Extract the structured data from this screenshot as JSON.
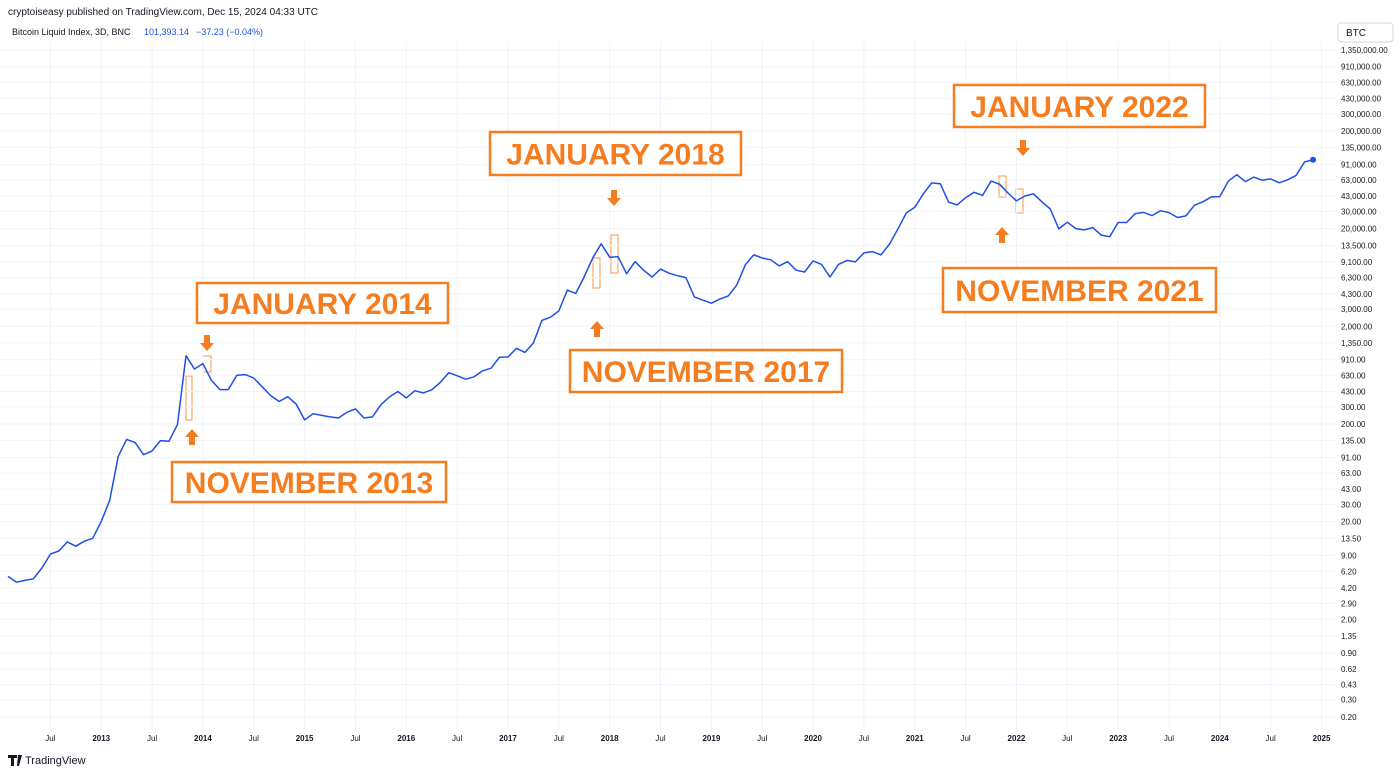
{
  "header": {
    "publisher": "cryptoiseasy published on TradingView.com, Dec 15, 2024 04:33 UTC",
    "price": "101,393.14",
    "change": "−37.23 (−0.04%)",
    "symbol": "BTC",
    "footer": "TradingView"
  },
  "chart_data": {
    "type": "line",
    "title": "Bitcoin Liquid Index, 3D, BNC",
    "color": "#1e4fe6",
    "log_scale": true,
    "grid": true,
    "x": [
      "2012-02",
      "2012-03",
      "2012-04",
      "2012-05",
      "2012-06",
      "2012-07",
      "2012-08",
      "2012-09",
      "2012-10",
      "2012-11",
      "2012-12",
      "2013-01",
      "2013-02",
      "2013-03",
      "2013-04",
      "2013-05",
      "2013-06",
      "2013-07",
      "2013-08",
      "2013-09",
      "2013-10",
      "2013-11",
      "2013-12",
      "2014-01",
      "2014-02",
      "2014-03",
      "2014-04",
      "2014-05",
      "2014-06",
      "2014-07",
      "2014-08",
      "2014-09",
      "2014-10",
      "2014-11",
      "2014-12",
      "2015-01",
      "2015-02",
      "2015-03",
      "2015-04",
      "2015-05",
      "2015-06",
      "2015-07",
      "2015-08",
      "2015-09",
      "2015-10",
      "2015-11",
      "2015-12",
      "2016-01",
      "2016-02",
      "2016-03",
      "2016-04",
      "2016-05",
      "2016-06",
      "2016-07",
      "2016-08",
      "2016-09",
      "2016-10",
      "2016-11",
      "2016-12",
      "2017-01",
      "2017-02",
      "2017-03",
      "2017-04",
      "2017-05",
      "2017-06",
      "2017-07",
      "2017-08",
      "2017-09",
      "2017-10",
      "2017-11",
      "2017-12",
      "2018-01",
      "2018-02",
      "2018-03",
      "2018-04",
      "2018-05",
      "2018-06",
      "2018-07",
      "2018-08",
      "2018-09",
      "2018-10",
      "2018-11",
      "2018-12",
      "2019-01",
      "2019-02",
      "2019-03",
      "2019-04",
      "2019-05",
      "2019-06",
      "2019-07",
      "2019-08",
      "2019-09",
      "2019-10",
      "2019-11",
      "2019-12",
      "2020-01",
      "2020-02",
      "2020-03",
      "2020-04",
      "2020-05",
      "2020-06",
      "2020-07",
      "2020-08",
      "2020-09",
      "2020-10",
      "2020-11",
      "2020-12",
      "2021-01",
      "2021-02",
      "2021-03",
      "2021-04",
      "2021-05",
      "2021-06",
      "2021-07",
      "2021-08",
      "2021-09",
      "2021-10",
      "2021-11",
      "2021-12",
      "2022-01",
      "2022-02",
      "2022-03",
      "2022-04",
      "2022-05",
      "2022-06",
      "2022-07",
      "2022-08",
      "2022-09",
      "2022-10",
      "2022-11",
      "2022-12",
      "2023-01",
      "2023-02",
      "2023-03",
      "2023-04",
      "2023-05",
      "2023-06",
      "2023-07",
      "2023-08",
      "2023-09",
      "2023-10",
      "2023-11",
      "2023-12",
      "2024-01",
      "2024-02",
      "2024-03",
      "2024-04",
      "2024-05",
      "2024-06",
      "2024-07",
      "2024-08",
      "2024-09",
      "2024-10",
      "2024-11",
      "2024-12"
    ],
    "values": [
      5.5,
      4.8,
      5.0,
      5.2,
      6.7,
      9.3,
      10,
      12.4,
      11.2,
      12.6,
      13.5,
      20,
      33,
      93,
      139,
      129,
      97,
      106,
      135,
      133,
      198,
      1000,
      730,
      830,
      560,
      450,
      450,
      630,
      640,
      590,
      480,
      390,
      340,
      380,
      320,
      220,
      255,
      245,
      236,
      230,
      263,
      285,
      230,
      236,
      314,
      378,
      430,
      370,
      437,
      416,
      448,
      531,
      670,
      624,
      575,
      608,
      700,
      745,
      963,
      970,
      1190,
      1080,
      1350,
      2300,
      2480,
      2870,
      4700,
      4340,
      6450,
      10000,
      14000,
      10200,
      10300,
      6900,
      9200,
      7500,
      6400,
      7700,
      7000,
      6600,
      6300,
      4000,
      3700,
      3450,
      3800,
      4100,
      5300,
      8500,
      10800,
      10000,
      9600,
      8300,
      9200,
      7500,
      7200,
      9350,
      8600,
      6400,
      8600,
      9450,
      9140,
      11300,
      11650,
      10780,
      13800,
      19700,
      29000,
      33100,
      45200,
      58800,
      57700,
      37300,
      35000,
      41500,
      47100,
      43800,
      61300,
      57000,
      46300,
      38500,
      43200,
      45500,
      37700,
      31800,
      19900,
      23300,
      20000,
      19400,
      20500,
      17200,
      16500,
      23100,
      23100,
      28500,
      29300,
      27200,
      30500,
      29200,
      26000,
      27000,
      34700,
      37700,
      42300,
      42600,
      61200,
      71300,
      60700,
      67500,
      62700,
      64600,
      59000,
      63300,
      70200,
      96400,
      101393
    ],
    "xlim": [
      "2012-02",
      "2025-02"
    ],
    "xticks": [
      {
        "value": "2012-07",
        "label": "Jul"
      },
      {
        "value": "2013-01",
        "label": "2013"
      },
      {
        "value": "2013-07",
        "label": "Jul"
      },
      {
        "value": "2014-01",
        "label": "2014"
      },
      {
        "value": "2014-07",
        "label": "Jul"
      },
      {
        "value": "2015-01",
        "label": "2015"
      },
      {
        "value": "2015-07",
        "label": "Jul"
      },
      {
        "value": "2016-01",
        "label": "2016"
      },
      {
        "value": "2016-07",
        "label": "Jul"
      },
      {
        "value": "2017-01",
        "label": "2017"
      },
      {
        "value": "2017-07",
        "label": "Jul"
      },
      {
        "value": "2018-01",
        "label": "2018"
      },
      {
        "value": "2018-07",
        "label": "Jul"
      },
      {
        "value": "2019-01",
        "label": "2019"
      },
      {
        "value": "2019-07",
        "label": "Jul"
      },
      {
        "value": "2020-01",
        "label": "2020"
      },
      {
        "value": "2020-07",
        "label": "Jul"
      },
      {
        "value": "2021-01",
        "label": "2021"
      },
      {
        "value": "2021-07",
        "label": "Jul"
      },
      {
        "value": "2022-01",
        "label": "2022"
      },
      {
        "value": "2022-07",
        "label": "Jul"
      },
      {
        "value": "2023-01",
        "label": "2023"
      },
      {
        "value": "2023-07",
        "label": "Jul"
      },
      {
        "value": "2024-01",
        "label": "2024"
      },
      {
        "value": "2024-07",
        "label": "Jul"
      },
      {
        "value": "2025-01",
        "label": "2025"
      }
    ],
    "ylim": [
      0.147,
      1630000
    ],
    "yticks": [
      {
        "value": 1350000,
        "label": "1,350,000.00"
      },
      {
        "value": 910000,
        "label": "910,000.00"
      },
      {
        "value": 630000,
        "label": "630,000.00"
      },
      {
        "value": 430000,
        "label": "430,000.00"
      },
      {
        "value": 300000,
        "label": "300,000.00"
      },
      {
        "value": 200000,
        "label": "200,000.00"
      },
      {
        "value": 135000,
        "label": "135,000.00"
      },
      {
        "value": 91000,
        "label": "91,000.00"
      },
      {
        "value": 63000,
        "label": "63,000.00"
      },
      {
        "value": 43000,
        "label": "43,000.00"
      },
      {
        "value": 30000,
        "label": "30,000.00"
      },
      {
        "value": 20000,
        "label": "20,000.00"
      },
      {
        "value": 13500,
        "label": "13,500.00"
      },
      {
        "value": 9100,
        "label": "9,100.00"
      },
      {
        "value": 6300,
        "label": "6,300.00"
      },
      {
        "value": 4300,
        "label": "4,300.00"
      },
      {
        "value": 3000,
        "label": "3,000.00"
      },
      {
        "value": 2000,
        "label": "2,000.00"
      },
      {
        "value": 1350,
        "label": "1,350.00"
      },
      {
        "value": 910,
        "label": "910.00"
      },
      {
        "value": 630,
        "label": "630.00"
      },
      {
        "value": 430,
        "label": "430.00"
      },
      {
        "value": 300,
        "label": "300.00"
      },
      {
        "value": 200,
        "label": "200.00"
      },
      {
        "value": 135,
        "label": "135.00"
      },
      {
        "value": 91,
        "label": "91.00"
      },
      {
        "value": 63,
        "label": "63.00"
      },
      {
        "value": 43,
        "label": "43.00"
      },
      {
        "value": 30,
        "label": "30.00"
      },
      {
        "value": 20,
        "label": "20.00"
      },
      {
        "value": 13.5,
        "label": "13.50"
      },
      {
        "value": 9,
        "label": "9.00"
      },
      {
        "value": 6.2,
        "label": "6.20"
      },
      {
        "value": 4.2,
        "label": "4.20"
      },
      {
        "value": 2.9,
        "label": "2.90"
      },
      {
        "value": 2,
        "label": "2.00"
      },
      {
        "value": 1.35,
        "label": "1.35"
      },
      {
        "value": 0.9,
        "label": "0.90"
      },
      {
        "value": 0.62,
        "label": "0.62"
      },
      {
        "value": 0.43,
        "label": "0.43"
      },
      {
        "value": 0.3,
        "label": "0.30"
      },
      {
        "value": 0.2,
        "label": "0.20"
      }
    ],
    "annotations": [
      "JANUARY 2014",
      "NOVEMBER 2013",
      "JANUARY 2018",
      "NOVEMBER 2017",
      "JANUARY 2022",
      "NOVEMBER 2021"
    ]
  }
}
